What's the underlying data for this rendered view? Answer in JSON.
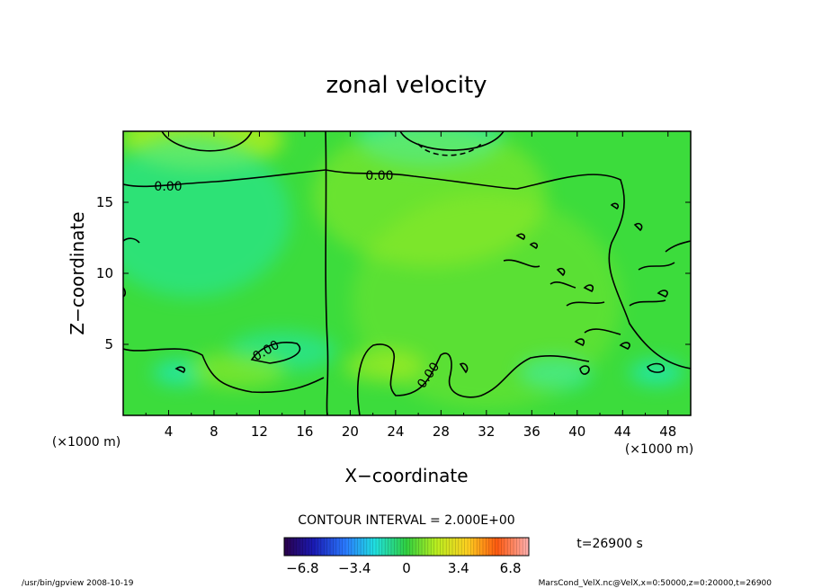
{
  "chart_data": {
    "type": "heatmap",
    "title": "zonal velocity",
    "xlabel": "X−coordinate",
    "ylabel": "Z−coordinate",
    "x_unit": "(×1000 m)",
    "y_unit": "(×1000 m)",
    "xlim": [
      0,
      50
    ],
    "ylim": [
      0,
      20
    ],
    "xticks": [
      4,
      8,
      12,
      16,
      20,
      24,
      28,
      32,
      36,
      40,
      44,
      48
    ],
    "yticks": [
      5,
      10,
      15
    ],
    "grid": false,
    "contour_interval_text": "CONTOUR INTERVAL = 2.000E+00",
    "contour_labels": [
      "0.00",
      "0.00",
      "0.00",
      "0.00"
    ],
    "time_label": "t=26900 s",
    "colorbar": {
      "min": -8,
      "max": 8,
      "tick_labels": [
        "−6.8",
        "−3.4",
        "0",
        "3.4",
        "6.8"
      ],
      "tick_values": [
        -6.8,
        -3.4,
        0,
        3.4,
        6.8
      ]
    },
    "field_regions": [
      {
        "x": 7,
        "z": 19.5,
        "value": 1.9,
        "sign": "positive"
      },
      {
        "x": 27,
        "z": 19.5,
        "value": -2.2,
        "sign": "negative"
      },
      {
        "x": 6,
        "z": 14,
        "value": -1.2,
        "sign": "negative"
      },
      {
        "x": 27,
        "z": 15.5,
        "value": 0.9,
        "sign": "positive"
      },
      {
        "x": 14,
        "z": 4.5,
        "value": -1.4,
        "sign": "negative"
      },
      {
        "x": 5,
        "z": 3,
        "value": -2.0,
        "sign": "negative"
      },
      {
        "x": 38,
        "z": 3,
        "value": -2.0,
        "sign": "negative"
      },
      {
        "x": 47,
        "z": 3,
        "value": -2.0,
        "sign": "negative"
      },
      {
        "x": 10,
        "z": 3.2,
        "value": 1.1,
        "sign": "positive"
      },
      {
        "x": 23,
        "z": 3.5,
        "value": 1.4,
        "sign": "positive"
      },
      {
        "x": 32,
        "z": 8,
        "value": 0.6,
        "sign": "positive"
      }
    ]
  },
  "footer": {
    "left": "/usr/bin/gpview   2008-10-19",
    "right": "MarsCond_VelX.nc@VelX,x=0:50000,z=0:20000,t=26900"
  },
  "colors": {
    "background_field": "#3cdc3c",
    "positive_blob": "#b4ef1e",
    "negative_blob": "#20e8b0"
  }
}
